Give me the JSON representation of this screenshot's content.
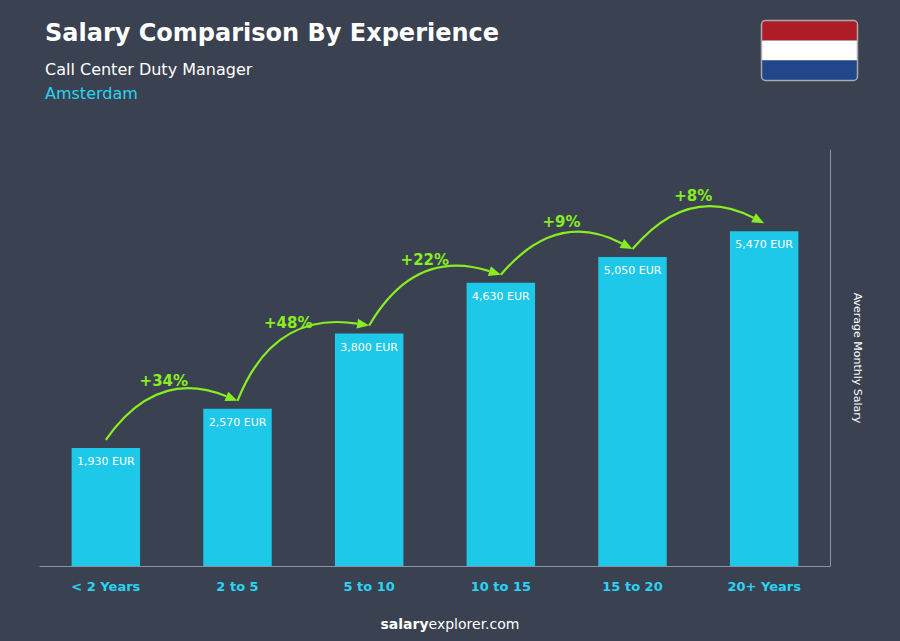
{
  "chart_data": {
    "type": "bar",
    "title": "Salary Comparison By Experience",
    "subtitle": "Call Center Duty Manager",
    "city": {
      "text": "Amsterdam",
      "color": "#29d4f5"
    },
    "categories": [
      "< 2 Years",
      "2 to 5",
      "5 to 10",
      "10 to 15",
      "15 to 20",
      "20+ Years"
    ],
    "values": [
      1930,
      2570,
      3800,
      4630,
      5050,
      5470
    ],
    "value_labels": [
      "1,930 EUR",
      "2,570 EUR",
      "3,800 EUR",
      "4,630 EUR",
      "5,050 EUR",
      "5,470 EUR"
    ],
    "data_labels": true,
    "color": "#1ec8e8",
    "x_label_color": "#29d4f5",
    "annotations": [
      {
        "text": "+34%",
        "from": "< 2 Years",
        "to": "2 to 5",
        "color": "#88ee22"
      },
      {
        "text": "+48%",
        "from": "2 to 5",
        "to": "5 to 10",
        "color": "#88ee22"
      },
      {
        "text": "+22%",
        "from": "5 to 10",
        "to": "10 to 15",
        "color": "#88ee22"
      },
      {
        "text": "+9%",
        "from": "10 to 15",
        "to": "15 to 20",
        "color": "#88ee22"
      },
      {
        "text": "+8%",
        "from": "15 to 20",
        "to": "20+ Years",
        "color": "#88ee22"
      }
    ],
    "ylabel": "Average Monthly Salary",
    "ylim": [
      0,
      6800
    ],
    "tick_labels": false,
    "grid": false,
    "footer": [
      "salary",
      "explorer.com"
    ]
  }
}
